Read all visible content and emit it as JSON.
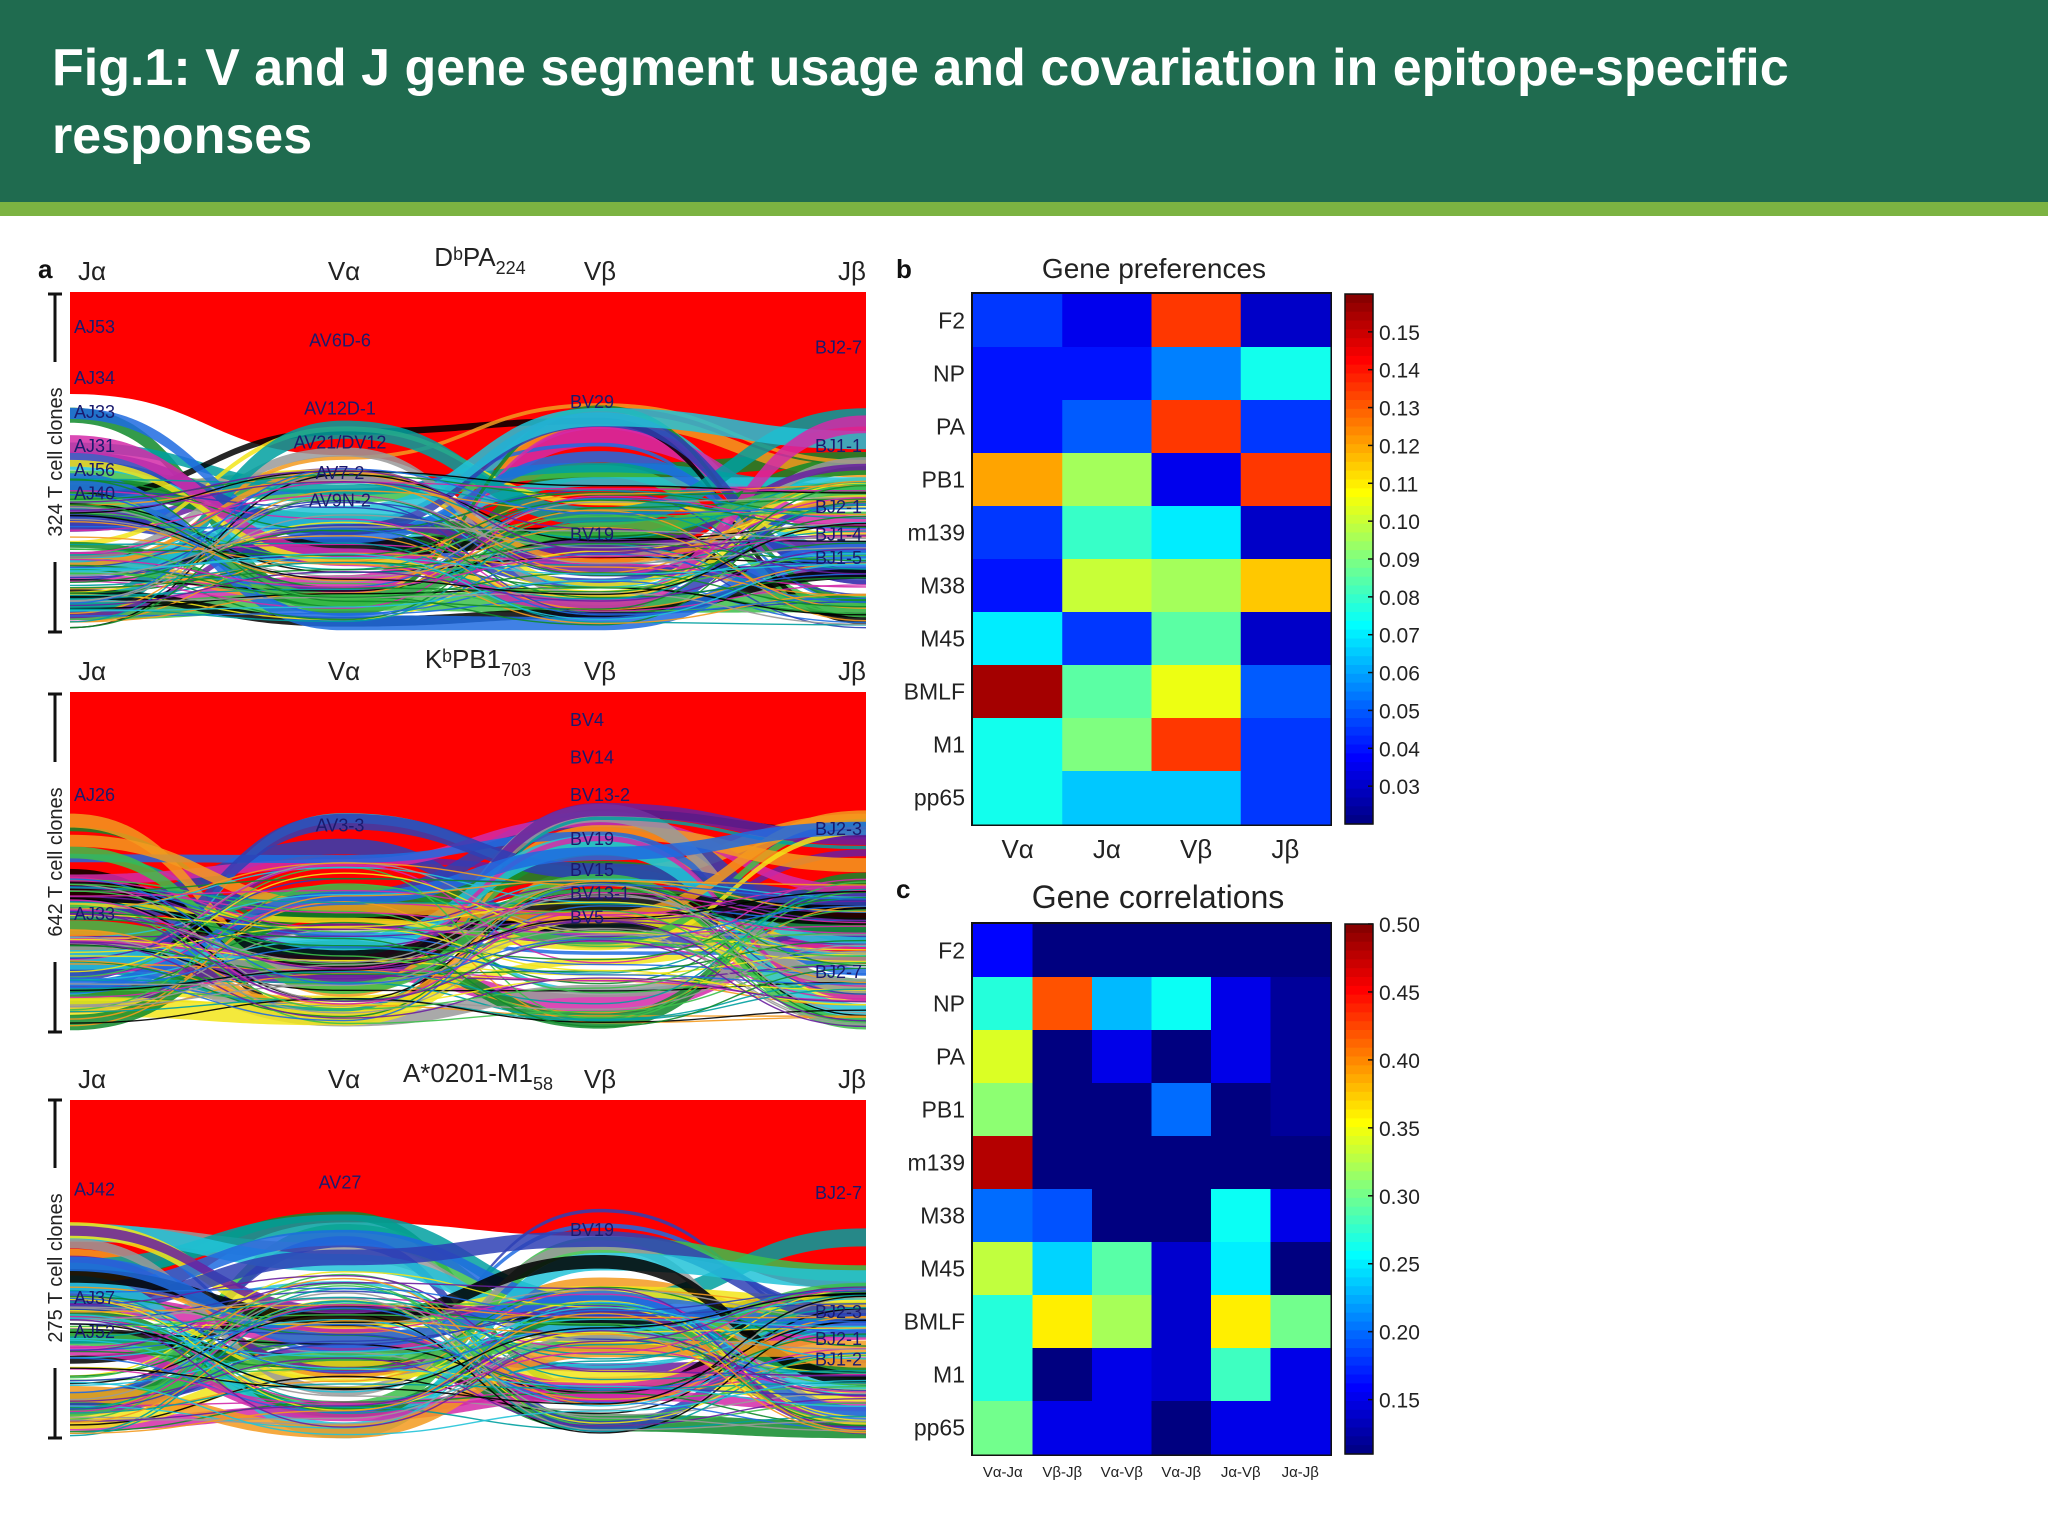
{
  "header": {
    "title": "Fig.1: V and J gene segment usage and covariation in epitope-specific responses"
  },
  "colors": {
    "header_bg": "#1f6b4f",
    "header_stripe": "#7cb342",
    "ribbon_main": "#ff0000",
    "ribbon_palette": [
      "#0f8a2a",
      "#6a1fa0",
      "#2e3fb5",
      "#22c3d8",
      "#d42aa8",
      "#000000",
      "#f2e51a",
      "#3cc04a",
      "#f39a1f",
      "#1f6be0",
      "#9a9a9a",
      "#00a0a0"
    ]
  },
  "panel_a": {
    "letter": "a",
    "column_labels": [
      "Jα",
      "Vα",
      "Vβ",
      "Jβ"
    ],
    "subplots": [
      {
        "epitope": "DᵇPA",
        "epitope_sub": "224",
        "ylabel": "324 T cell clones",
        "labels": [
          {
            "text": "AJ53",
            "col": "Ja",
            "pos": 0.1
          },
          {
            "text": "AJ34",
            "col": "Ja",
            "pos": 0.25
          },
          {
            "text": "AJ33",
            "col": "Ja",
            "pos": 0.35
          },
          {
            "text": "AJ31",
            "col": "Ja",
            "pos": 0.45
          },
          {
            "text": "AJ56",
            "col": "Ja",
            "pos": 0.52
          },
          {
            "text": "AJ40",
            "col": "Ja",
            "pos": 0.59
          },
          {
            "text": "AV6D-6",
            "col": "Va",
            "pos": 0.14
          },
          {
            "text": "AV12D-1",
            "col": "Va",
            "pos": 0.34
          },
          {
            "text": "AV21/DV12",
            "col": "Va",
            "pos": 0.44
          },
          {
            "text": "AV7-2",
            "col": "Va",
            "pos": 0.53
          },
          {
            "text": "AV9N-2",
            "col": "Va",
            "pos": 0.61
          },
          {
            "text": "BV29",
            "col": "Vb",
            "pos": 0.32
          },
          {
            "text": "BV19",
            "col": "Vb",
            "pos": 0.71
          },
          {
            "text": "BJ2-7",
            "col": "Jb",
            "pos": 0.16
          },
          {
            "text": "BJ1-1",
            "col": "Jb",
            "pos": 0.45
          },
          {
            "text": "BJ2-1",
            "col": "Jb",
            "pos": 0.63
          },
          {
            "text": "BJ1-4",
            "col": "Jb",
            "pos": 0.71
          },
          {
            "text": "BJ1-5",
            "col": "Jb",
            "pos": 0.78
          }
        ]
      },
      {
        "epitope": "KᵇPB1",
        "epitope_sub": "703",
        "ylabel": "642 T cell clones",
        "labels": [
          {
            "text": "AJ26",
            "col": "Ja",
            "pos": 0.3
          },
          {
            "text": "AJ33",
            "col": "Ja",
            "pos": 0.65
          },
          {
            "text": "AV3-3",
            "col": "Va",
            "pos": 0.39
          },
          {
            "text": "BV4",
            "col": "Vb",
            "pos": 0.08
          },
          {
            "text": "BV14",
            "col": "Vb",
            "pos": 0.19
          },
          {
            "text": "BV13-2",
            "col": "Vb",
            "pos": 0.3
          },
          {
            "text": "BV19",
            "col": "Vb",
            "pos": 0.43
          },
          {
            "text": "BV15",
            "col": "Vb",
            "pos": 0.52
          },
          {
            "text": "BV13-1",
            "col": "Vb",
            "pos": 0.59
          },
          {
            "text": "BV5",
            "col": "Vb",
            "pos": 0.66
          },
          {
            "text": "BJ2-3",
            "col": "Jb",
            "pos": 0.4
          },
          {
            "text": "BJ2-7",
            "col": "Jb",
            "pos": 0.82
          }
        ]
      },
      {
        "epitope": "A*0201-M1",
        "epitope_sub": "58",
        "ylabel": "275 T cell clones",
        "labels": [
          {
            "text": "AJ42",
            "col": "Ja",
            "pos": 0.26
          },
          {
            "text": "AJ37",
            "col": "Ja",
            "pos": 0.58
          },
          {
            "text": "AJ52",
            "col": "Ja",
            "pos": 0.68
          },
          {
            "text": "AV27",
            "col": "Va",
            "pos": 0.24
          },
          {
            "text": "BV19",
            "col": "Vb",
            "pos": 0.38
          },
          {
            "text": "BJ2-7",
            "col": "Jb",
            "pos": 0.27
          },
          {
            "text": "BJ2-3",
            "col": "Jb",
            "pos": 0.62
          },
          {
            "text": "BJ2-1",
            "col": "Jb",
            "pos": 0.7
          },
          {
            "text": "BJ1-2",
            "col": "Jb",
            "pos": 0.76
          }
        ]
      }
    ]
  },
  "chart_data": [
    {
      "type": "heatmap",
      "panel": "b",
      "title": "Gene preferences",
      "rows": [
        "F2",
        "NP",
        "PA",
        "PB1",
        "m139",
        "M38",
        "M45",
        "BMLF",
        "M1",
        "pp65"
      ],
      "columns": [
        "Vα",
        "Jα",
        "Vβ",
        "Jβ"
      ],
      "values": [
        [
          0.045,
          0.035,
          0.135,
          0.03
        ],
        [
          0.04,
          0.04,
          0.055,
          0.075
        ],
        [
          0.04,
          0.05,
          0.135,
          0.045
        ],
        [
          0.12,
          0.095,
          0.035,
          0.135
        ],
        [
          0.045,
          0.08,
          0.07,
          0.03
        ],
        [
          0.04,
          0.1,
          0.095,
          0.115
        ],
        [
          0.07,
          0.045,
          0.085,
          0.03
        ],
        [
          0.155,
          0.085,
          0.105,
          0.05
        ],
        [
          0.075,
          0.09,
          0.135,
          0.045
        ],
        [
          0.075,
          0.065,
          0.065,
          0.045
        ]
      ],
      "colorbar_ticks": [
        "0.15",
        "0.14",
        "0.13",
        "0.12",
        "0.11",
        "0.10",
        "0.09",
        "0.08",
        "0.07",
        "0.06",
        "0.05",
        "0.04",
        "0.03"
      ],
      "colorbar_range": [
        0.02,
        0.16
      ]
    },
    {
      "type": "heatmap",
      "panel": "c",
      "title": "Gene correlations",
      "rows": [
        "F2",
        "NP",
        "PA",
        "PB1",
        "m139",
        "M38",
        "M45",
        "BMLF",
        "M1",
        "pp65"
      ],
      "columns": [
        "Vα-Jα",
        "Vβ-Jβ",
        "Vα-Vβ",
        "Vα-Jβ",
        "Jα-Vβ",
        "Jα-Jβ"
      ],
      "values": [
        [
          0.16,
          0.11,
          0.11,
          0.11,
          0.11,
          0.11
        ],
        [
          0.27,
          0.42,
          0.23,
          0.26,
          0.15,
          0.12
        ],
        [
          0.34,
          0.11,
          0.15,
          0.11,
          0.15,
          0.12
        ],
        [
          0.31,
          0.11,
          0.11,
          0.2,
          0.11,
          0.12
        ],
        [
          0.48,
          0.11,
          0.11,
          0.11,
          0.11,
          0.11
        ],
        [
          0.2,
          0.19,
          0.11,
          0.11,
          0.26,
          0.15
        ],
        [
          0.33,
          0.24,
          0.29,
          0.14,
          0.25,
          0.11
        ],
        [
          0.27,
          0.36,
          0.32,
          0.14,
          0.36,
          0.3
        ],
        [
          0.27,
          0.11,
          0.15,
          0.14,
          0.28,
          0.15
        ],
        [
          0.3,
          0.15,
          0.15,
          0.11,
          0.15,
          0.15
        ]
      ],
      "colorbar_ticks": [
        "0.50",
        "0.45",
        "0.40",
        "0.35",
        "0.30",
        "0.25",
        "0.20",
        "0.15"
      ],
      "colorbar_range": [
        0.11,
        0.5
      ]
    }
  ]
}
